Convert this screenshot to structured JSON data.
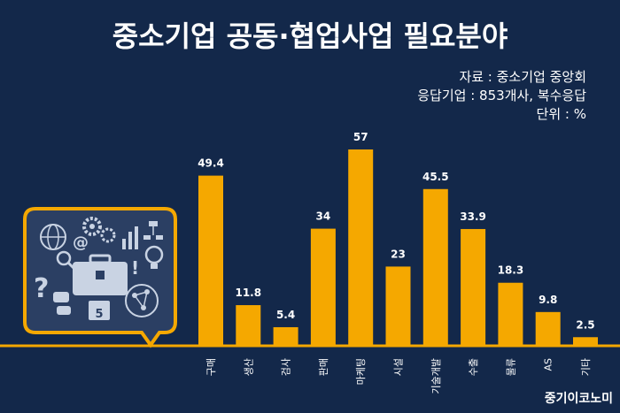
{
  "header": {
    "title": "중소기업 공동·협업사업 필요분야",
    "source": "자료 : 중소기업 중앙회",
    "respondents": "응답기업 : 853개사, 복수응답",
    "unit": "단위 : %"
  },
  "footer": {
    "brand": "중기이코노미"
  },
  "colors": {
    "background": "#13284a",
    "bar": "#f5a800",
    "accent": "#f5a800",
    "icon_panel": "#2b3f63"
  },
  "chart_data": {
    "type": "bar",
    "title": "중소기업 공동·협업사업 필요분야",
    "categories": [
      "구매",
      "생산",
      "검사",
      "판매",
      "마케팅",
      "시설",
      "기술개발",
      "수출",
      "물류",
      "AS",
      "기타"
    ],
    "values": [
      49.4,
      11.8,
      5.4,
      34,
      57,
      23,
      45.5,
      33.9,
      18.3,
      9.8,
      2.5
    ],
    "value_labels": [
      "49.4",
      "11.8",
      "5.4",
      "34",
      "57",
      "23",
      "45.5",
      "33.9",
      "18.3",
      "9.8",
      "2.5"
    ],
    "ylim": [
      0,
      60
    ],
    "grid": false,
    "legend": "none"
  }
}
